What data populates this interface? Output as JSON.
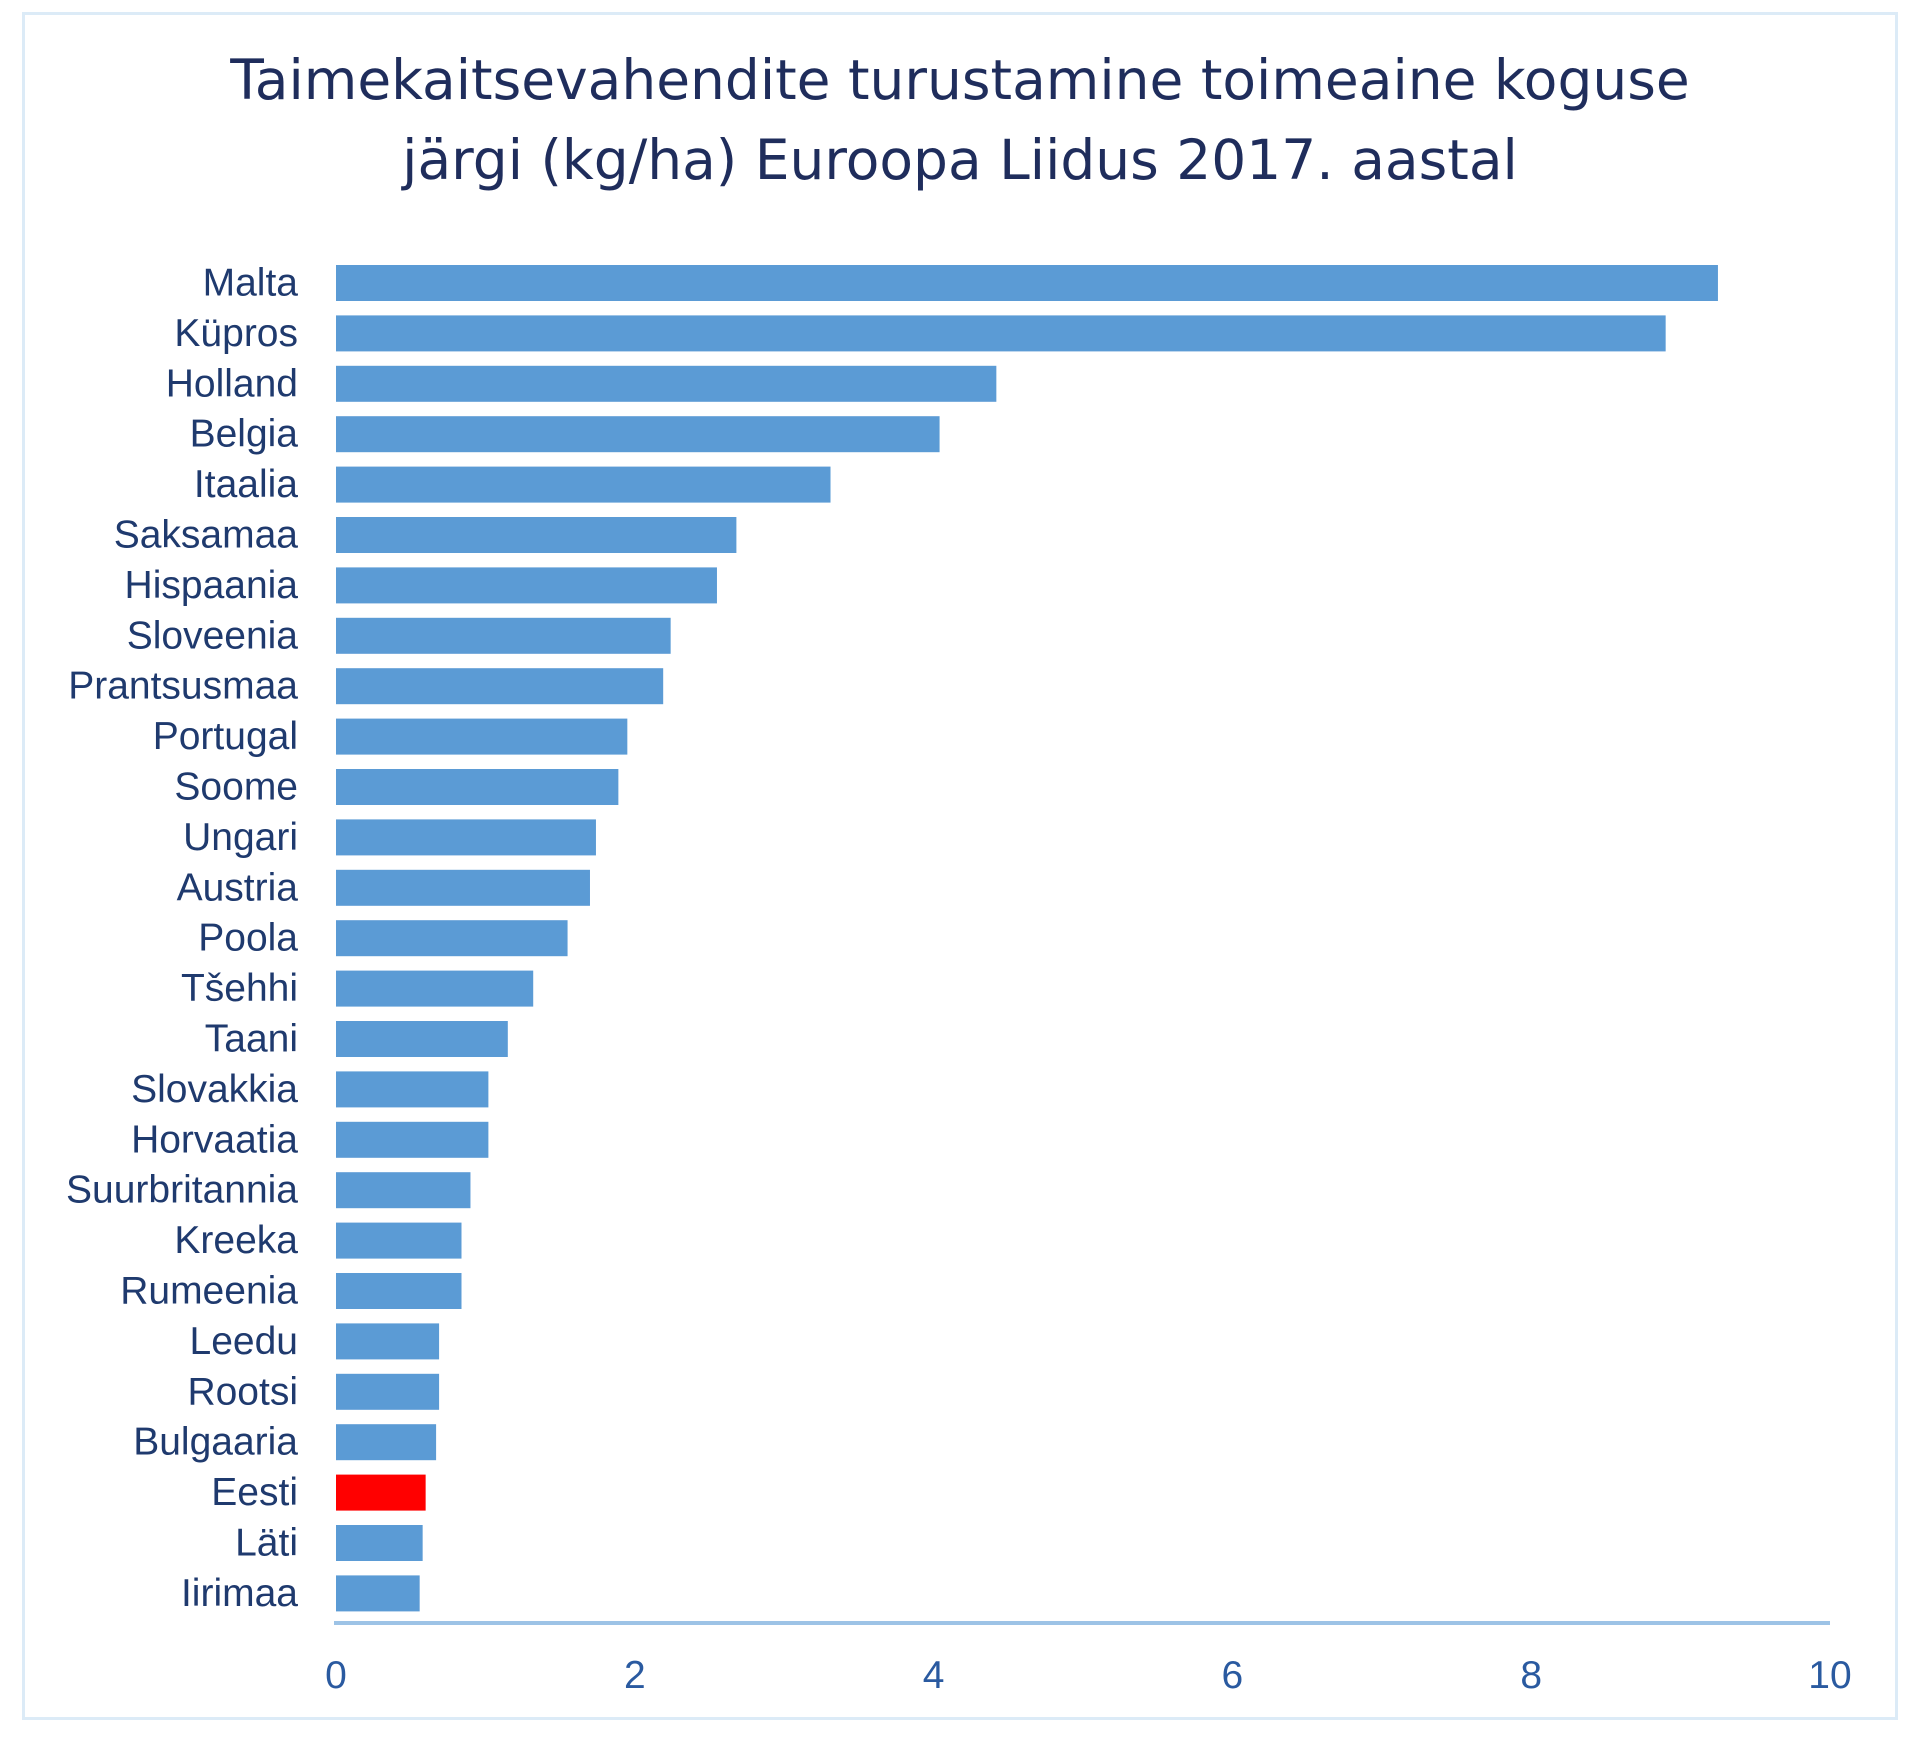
{
  "chart_data": {
    "type": "bar",
    "orientation": "horizontal",
    "title_lines": [
      "Taimekaitsevahendite turustamine toimeaine koguse",
      "järgi (kg/ha) Euroopa Liidus 2017. aastal"
    ],
    "categories": [
      "Malta",
      "Küpros",
      "Holland",
      "Belgia",
      "Itaalia",
      "Saksamaa",
      "Hispaania",
      "Sloveenia",
      "Prantsusmaa",
      "Portugal",
      "Soome",
      "Ungari",
      "Austria",
      "Poola",
      "Tšehhi",
      "Taani",
      "Slovakkia",
      "Horvaatia",
      "Suurbritannia",
      "Kreeka",
      "Rumeenia",
      "Leedu",
      "Rootsi",
      "Bulgaaria",
      "Eesti",
      "Läti",
      "Iirimaa"
    ],
    "values": [
      9.25,
      8.9,
      4.42,
      4.04,
      3.31,
      2.68,
      2.55,
      2.24,
      2.19,
      1.95,
      1.89,
      1.74,
      1.7,
      1.55,
      1.32,
      1.15,
      1.02,
      1.02,
      0.9,
      0.84,
      0.84,
      0.69,
      0.69,
      0.67,
      0.6,
      0.58,
      0.56
    ],
    "highlight": {
      "category": "Eesti",
      "color": "#ff0000"
    },
    "bar_color": "#5b9bd5",
    "xlim": [
      0,
      10
    ],
    "xticks": [
      0,
      2,
      4,
      6,
      8,
      10
    ],
    "xlabel": "",
    "ylabel": "",
    "grid": false,
    "legend": "none"
  }
}
